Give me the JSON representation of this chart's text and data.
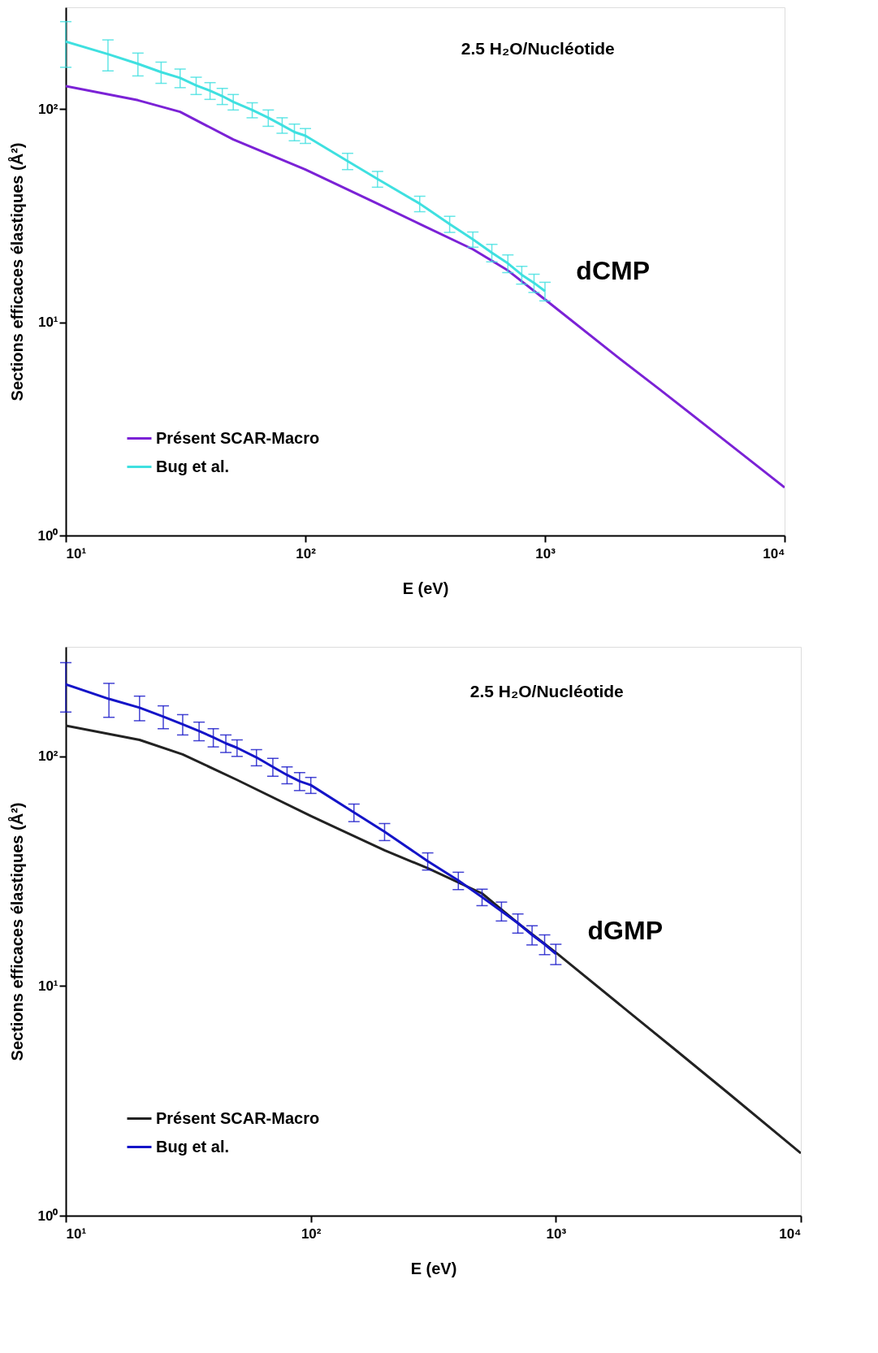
{
  "chart_data": [
    {
      "type": "line",
      "xlabel": "E (eV)",
      "ylabel": "Sections efficaces élastiques (Å²)",
      "log": "xy",
      "grid": false,
      "legend": "bottom left",
      "marker": "none",
      "line_style": "solid",
      "xlim": [
        10,
        10000
      ],
      "ylim": [
        1,
        300
      ],
      "xticks": [
        {
          "value": 10,
          "label": "10¹"
        },
        {
          "value": 100,
          "label": "10²"
        },
        {
          "value": 1000,
          "label": "10³"
        },
        {
          "value": 10000,
          "label": "10⁴"
        }
      ],
      "yticks": [
        {
          "value": 1,
          "label": "10⁰"
        },
        {
          "value": 10,
          "label": "10¹"
        },
        {
          "value": 100,
          "label": "10²"
        }
      ],
      "annotations": [
        "2.5 H₂O/Nucléotide",
        "dCMP"
      ],
      "series": [
        {
          "name": "Présent SCAR-Macro",
          "color": "#7b22d6",
          "x": [
            10,
            20,
            30,
            50,
            100,
            200,
            300,
            500,
            700,
            1000,
            2000,
            3000,
            5000,
            10000
          ],
          "values": [
            128,
            110,
            97,
            72,
            52,
            36,
            28.9,
            22,
            17.5,
            12.8,
            6.9,
            4.86,
            3.1,
            1.68
          ]
        },
        {
          "name": "Bug et al.",
          "color": "#3fe0e0",
          "x": [
            10,
            15,
            20,
            25,
            30,
            35,
            40,
            45,
            50,
            60,
            70,
            80,
            90,
            100,
            150,
            200,
            300,
            400,
            500,
            600,
            700,
            800,
            900,
            1000
          ],
          "values": [
            207,
            181,
            163,
            149,
            140,
            129,
            122,
            115,
            108,
            99,
            91,
            84,
            78,
            75,
            57,
            47,
            36,
            28.9,
            24.5,
            21.2,
            18.9,
            16.7,
            15.3,
            14.0
          ],
          "errors": [
            50,
            30,
            20,
            17,
            14,
            12,
            11,
            10,
            9,
            8,
            8,
            7,
            7,
            6,
            5,
            4,
            3,
            2.5,
            2,
            2,
            1.8,
            1.6,
            1.5,
            1.4
          ]
        }
      ]
    },
    {
      "type": "line",
      "xlabel": "E (eV)",
      "ylabel": "Sections efficaces élastiques (Å²)",
      "log": "xy",
      "grid": false,
      "legend": "bottom left",
      "marker": "none",
      "line_style": "solid",
      "xlim": [
        10,
        10000
      ],
      "ylim": [
        1,
        300
      ],
      "xticks": [
        {
          "value": 10,
          "label": "10¹"
        },
        {
          "value": 100,
          "label": "10²"
        },
        {
          "value": 1000,
          "label": "10³"
        },
        {
          "value": 10000,
          "label": "10⁴"
        }
      ],
      "yticks": [
        {
          "value": 1,
          "label": "10⁰"
        },
        {
          "value": 10,
          "label": "10¹"
        },
        {
          "value": 100,
          "label": "10²"
        }
      ],
      "annotations": [
        "2.5 H₂O/Nucléotide",
        "dGMP"
      ],
      "series": [
        {
          "name": "Présent SCAR-Macro",
          "color": "#222222",
          "x": [
            10,
            20,
            30,
            50,
            100,
            200,
            300,
            500,
            700,
            1000,
            2000,
            3000,
            5000,
            10000
          ],
          "values": [
            136,
            118,
            102,
            79,
            55,
            39,
            32.6,
            25.3,
            18.8,
            14.0,
            7.66,
            5.39,
            3.45,
            1.87
          ]
        },
        {
          "name": "Bug et al.",
          "color": "#1414c8",
          "x": [
            10,
            15,
            20,
            25,
            30,
            35,
            40,
            45,
            50,
            60,
            70,
            80,
            90,
            100,
            150,
            200,
            300,
            400,
            500,
            600,
            700,
            800,
            900,
            1000
          ],
          "values": [
            206,
            178,
            163,
            149,
            138,
            129,
            121,
            114,
            109,
            99,
            90,
            83,
            78,
            75,
            57,
            47,
            35,
            28.8,
            24.4,
            21.2,
            18.8,
            16.7,
            15.2,
            13.8
          ],
          "errors": [
            50,
            30,
            20,
            17,
            14,
            12,
            11,
            10,
            9,
            8,
            8,
            7,
            7,
            6,
            5,
            4,
            3,
            2.5,
            2,
            2,
            1.8,
            1.6,
            1.5,
            1.4
          ]
        }
      ]
    }
  ]
}
